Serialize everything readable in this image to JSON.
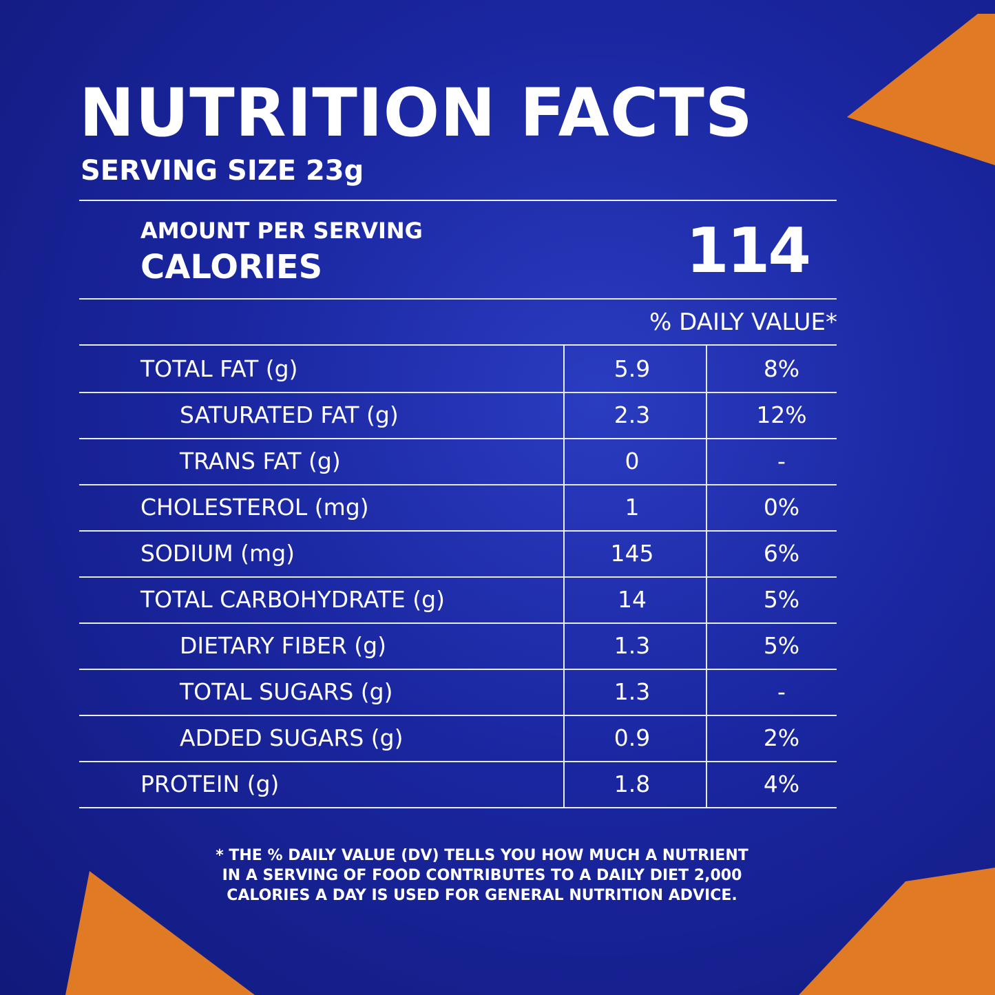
{
  "header": {
    "title": "NUTRITION FACTS",
    "serving_size": "SERVING SIZE 23g"
  },
  "calories": {
    "label_top": "AMOUNT PER SERVING",
    "label": "CALORIES",
    "value": "114"
  },
  "table": {
    "dv_header": "% DAILY VALUE*",
    "rows": [
      [
        "TOTAL FAT (g)",
        "5.9",
        "8%"
      ],
      [
        "SATURATED FAT (g)",
        "2.3",
        "12%"
      ],
      [
        "TRANS FAT (g)",
        "0",
        "-"
      ],
      [
        "CHOLESTEROL (mg)",
        "1",
        "0%"
      ],
      [
        "SODIUM (mg)",
        "145",
        "6%"
      ],
      [
        "TOTAL CARBOHYDRATE (g)",
        "14",
        "5%"
      ],
      [
        "DIETARY FIBER (g)",
        "1.3",
        "5%"
      ],
      [
        "TOTAL SUGARS (g)",
        "1.3",
        "-"
      ],
      [
        "ADDED SUGARS (g)",
        "0.9",
        "2%"
      ],
      [
        "PROTEIN (g)",
        "1.8",
        "4%"
      ]
    ],
    "indented": [
      false,
      true,
      true,
      false,
      false,
      false,
      true,
      true,
      true,
      false
    ]
  },
  "footnote": [
    "* THE % DAILY VALUE (DV) TELLS YOU HOW MUCH A NUTRIENT",
    "IN A SERVING OF FOOD CONTRIBUTES TO A DAILY DIET 2,000",
    "CALORIES A DAY IS USED FOR GENERAL NUTRITION ADVICE."
  ]
}
